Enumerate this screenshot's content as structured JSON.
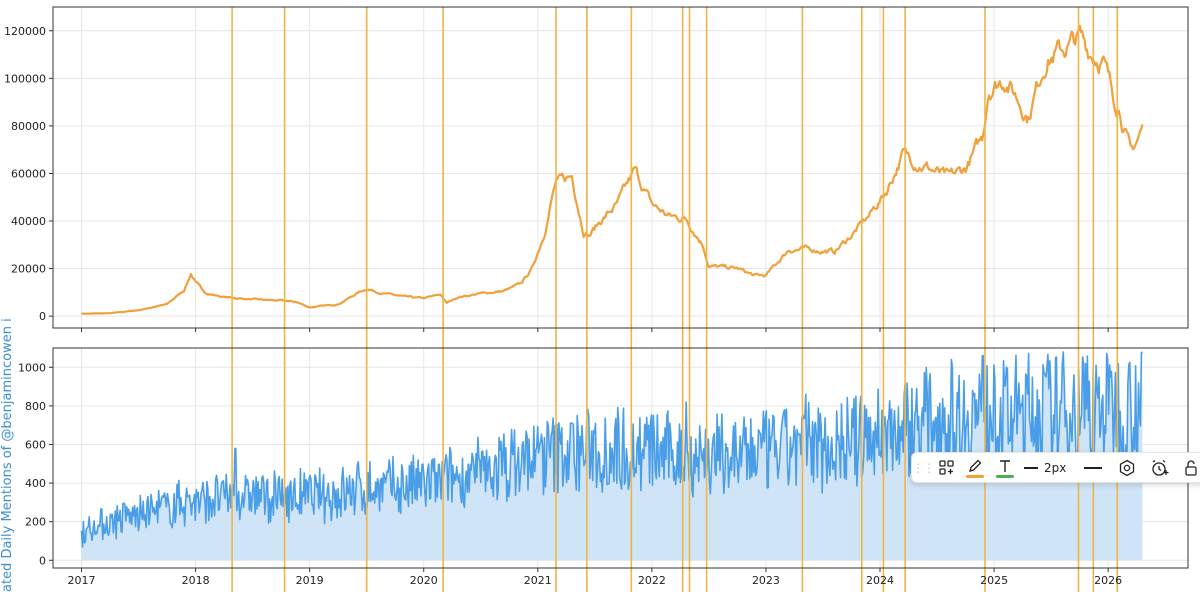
{
  "colors": {
    "price_line": "#f0a03c",
    "mentions_line": "#4a9ee8",
    "mentions_fill": "#cfe4f7",
    "event_lines": "#f2b445",
    "ylabel": "#3b8fd0",
    "grid": "#e6e6e6",
    "toolbar_pencil_underline": "#f0a03c",
    "toolbar_text_underline": "#4caf50"
  },
  "chart_data": [
    {
      "type": "line",
      "panel": "top",
      "title": "",
      "xlabel": "",
      "ylabel": "",
      "xlim": [
        2016.75,
        2026.7
      ],
      "ylim": [
        -5000,
        130000
      ],
      "grid": true,
      "yticks": [
        0,
        20000,
        40000,
        60000,
        80000,
        100000,
        120000
      ],
      "ytick_labels": [
        "0",
        "20000",
        "40000",
        "60000",
        "80000",
        "100000",
        "120000"
      ],
      "x": [
        2017.0,
        2017.25,
        2017.5,
        2017.75,
        2017.9,
        2017.96,
        2018.0,
        2018.1,
        2018.25,
        2018.5,
        2018.75,
        2018.88,
        2019.0,
        2019.25,
        2019.45,
        2019.5,
        2019.65,
        2019.85,
        2020.0,
        2020.15,
        2020.2,
        2020.3,
        2020.5,
        2020.7,
        2020.85,
        2020.95,
        2021.05,
        2021.15,
        2021.3,
        2021.4,
        2021.45,
        2021.55,
        2021.7,
        2021.85,
        2022.0,
        2022.15,
        2022.3,
        2022.45,
        2022.5,
        2022.75,
        2022.9,
        2023.0,
        2023.2,
        2023.4,
        2023.6,
        2023.75,
        2023.9,
        2024.05,
        2024.2,
        2024.4,
        2024.6,
        2024.75,
        2024.9,
        2024.95,
        2025.1,
        2025.3,
        2025.45,
        2025.6,
        2025.75,
        2025.85,
        2025.95,
        2026.05,
        2026.1,
        2026.2,
        2026.3
      ],
      "series": [
        {
          "values": [
            1000,
            1200,
            2500,
            5000,
            11000,
            18000,
            14000,
            9500,
            8000,
            7000,
            6500,
            6000,
            3700,
            5000,
            10500,
            11500,
            9500,
            8000,
            7500,
            9000,
            5500,
            8000,
            9500,
            10500,
            13500,
            20000,
            34000,
            55000,
            59000,
            36000,
            34000,
            40000,
            47000,
            61000,
            47000,
            42000,
            41000,
            30000,
            21000,
            20000,
            17000,
            17000,
            28000,
            28000,
            27000,
            34000,
            42000,
            52000,
            68000,
            63000,
            58000,
            62000,
            75000,
            96000,
            100000,
            84000,
            108000,
            112000,
            117000,
            111000,
            108000,
            92000,
            88000,
            68000,
            79000
          ]
        }
      ]
    },
    {
      "type": "area",
      "panel": "bottom",
      "title": "",
      "xlabel": "",
      "ylabel": "ated Daily Mentions of @benjamincowen i",
      "xlim": [
        2016.75,
        2026.7
      ],
      "ylim": [
        -40,
        1100
      ],
      "grid": true,
      "yticks": [
        0,
        200,
        400,
        600,
        800,
        1000
      ],
      "ytick_labels": [
        "0",
        "200",
        "400",
        "600",
        "800",
        "1000"
      ],
      "x_ticks": [
        2017,
        2018,
        2019,
        2020,
        2021,
        2022,
        2023,
        2024,
        2025,
        2026
      ],
      "x_tick_labels": [
        "2017",
        "2018",
        "2019",
        "2020",
        "2021",
        "2022",
        "2023",
        "2024",
        "2025",
        "2026"
      ],
      "x": [
        2017.0,
        2017.5,
        2018.0,
        2018.5,
        2019.0,
        2019.5,
        2020.0,
        2020.5,
        2021.0,
        2021.5,
        2022.0,
        2022.5,
        2023.0,
        2023.5,
        2024.0,
        2024.5,
        2025.0,
        2025.5,
        2026.0,
        2026.3
      ],
      "series": [
        {
          "values": [
            150,
            240,
            310,
            330,
            330,
            370,
            390,
            450,
            540,
            580,
            560,
            540,
            560,
            600,
            650,
            740,
            760,
            780,
            800,
            820
          ]
        }
      ],
      "spikes": [
        {
          "x": 2018.35,
          "y": 580
        },
        {
          "x": 2021.3,
          "y": 710
        },
        {
          "x": 2022.3,
          "y": 820
        },
        {
          "x": 2023.35,
          "y": 860
        },
        {
          "x": 2024.9,
          "y": 1060
        },
        {
          "x": 2025.8,
          "y": 1020
        }
      ]
    }
  ],
  "event_lines_x": [
    2018.32,
    2018.78,
    2019.5,
    2020.17,
    2021.16,
    2021.43,
    2021.82,
    2022.27,
    2022.33,
    2022.48,
    2023.32,
    2023.84,
    2024.03,
    2024.22,
    2024.92,
    2025.74,
    2025.87,
    2026.08
  ],
  "toolbar": {
    "width_label": "2px",
    "handle": "⋮⋮"
  }
}
